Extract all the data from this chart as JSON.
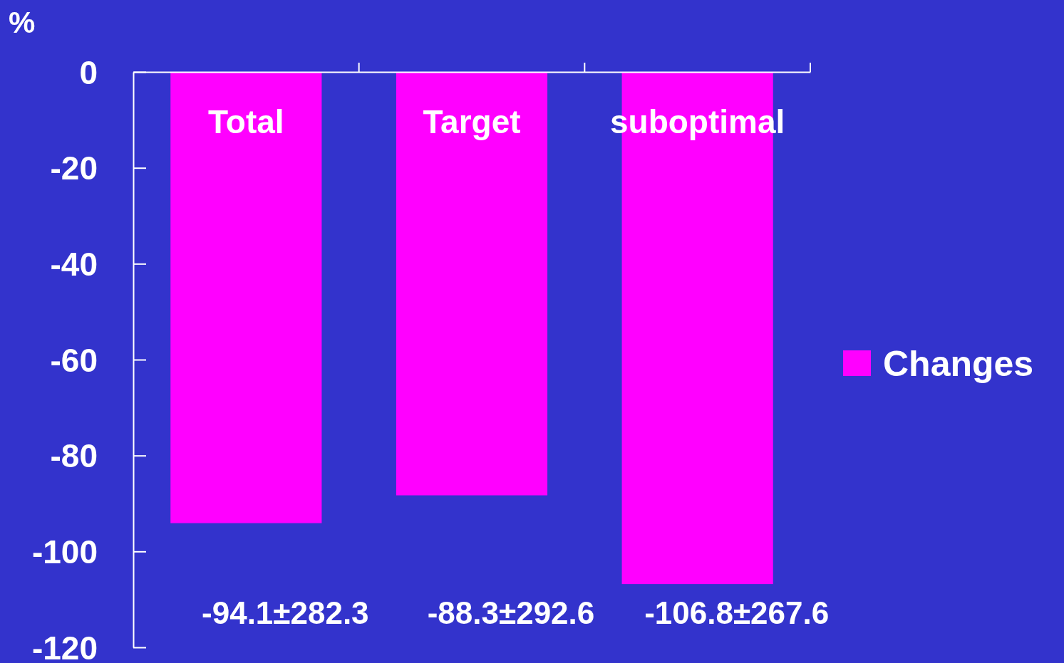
{
  "chart_data": {
    "type": "bar",
    "ylabel": "%",
    "categories": [
      "Total",
      "Target",
      "suboptimal"
    ],
    "series": [
      {
        "name": "Changes",
        "color": "#ff00ff",
        "values": [
          -94.1,
          -88.3,
          -106.8
        ],
        "value_labels": [
          "-94.1±282.3",
          "-88.3±292.6",
          "-106.8±267.6"
        ]
      }
    ],
    "ylim": [
      -120,
      0
    ],
    "yticks": [
      0,
      -20,
      -40,
      -60,
      -80,
      -100,
      -120
    ],
    "grid": false,
    "legend": "right"
  }
}
